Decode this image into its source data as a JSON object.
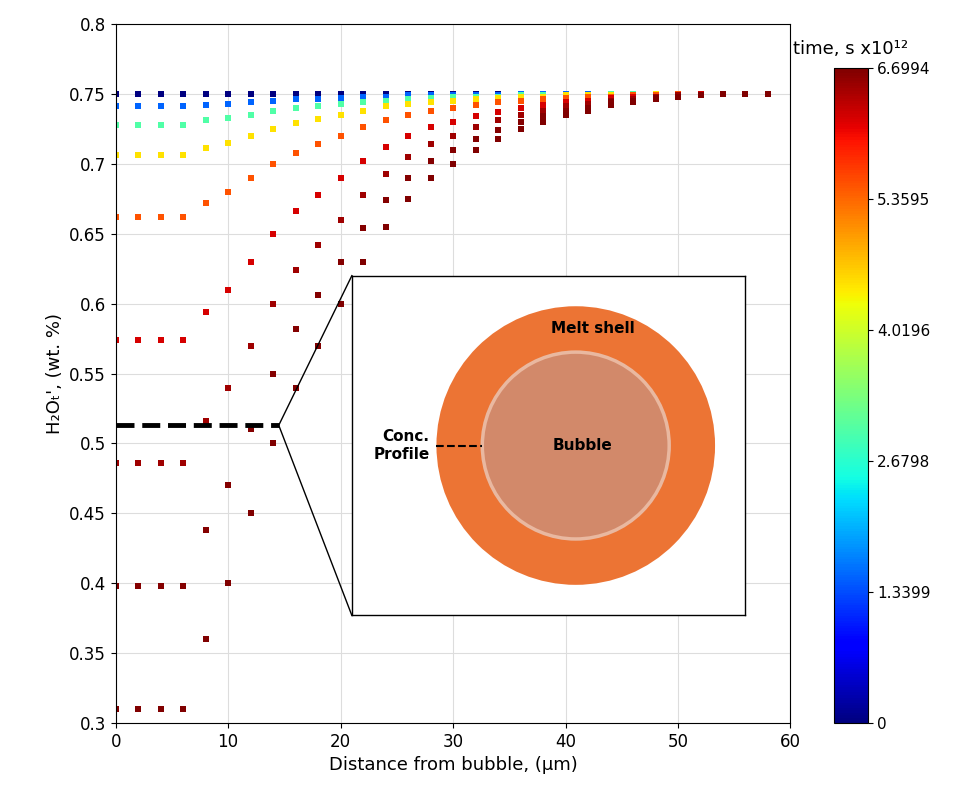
{
  "chart_data": {
    "type": "scatter",
    "x_label": "Distance from bubble, (µm)",
    "y_label": "H₂Oₜ', (wt. %)",
    "xlim": [
      0,
      60
    ],
    "xticks": [
      0,
      10,
      20,
      30,
      40,
      50,
      60
    ],
    "ylim": [
      0.3,
      0.8
    ],
    "yticks": [
      0.3,
      0.35,
      0.4,
      0.45,
      0.5,
      0.55,
      0.6,
      0.65,
      0.7,
      0.75,
      0.8
    ],
    "grid": true,
    "marker": "square",
    "x": [
      0,
      2,
      4,
      6,
      8,
      10,
      12,
      14,
      16,
      18,
      20,
      22,
      24,
      26,
      28,
      30,
      32,
      34,
      36,
      38,
      40,
      42,
      44,
      46,
      48,
      50,
      52,
      54,
      56,
      58
    ],
    "series": [
      {
        "time": 0,
        "values": [
          0.75,
          0.75,
          0.75,
          0.75,
          0.75,
          0.75,
          0.75,
          0.75,
          0.75,
          0.75,
          0.75,
          0.75,
          0.75,
          0.75,
          0.75,
          0.75,
          0.75,
          0.75,
          0.75,
          0.75,
          0.75,
          0.75,
          0.75,
          0.75,
          0.75,
          0.75,
          0.75,
          0.75,
          0.75,
          0.75
        ]
      },
      {
        "time": 1.5,
        "values": [
          0.741,
          0.741,
          0.741,
          0.741,
          0.742,
          0.743,
          0.744,
          0.745,
          0.746,
          0.746,
          0.747,
          0.748,
          0.748,
          0.749,
          0.749,
          0.749,
          0.749,
          0.749,
          0.75,
          0.75,
          0.75,
          0.75,
          0.75,
          0.75,
          0.75,
          0.75,
          0.75,
          0.75,
          0.75,
          0.75
        ]
      },
      {
        "time": 3.0,
        "values": [
          0.728,
          0.728,
          0.728,
          0.728,
          0.731,
          0.733,
          0.735,
          0.738,
          0.74,
          0.741,
          0.743,
          0.744,
          0.745,
          0.746,
          0.747,
          0.748,
          0.748,
          0.748,
          0.749,
          0.749,
          0.749,
          0.749,
          0.75,
          0.75,
          0.75,
          0.75,
          0.75,
          0.75,
          0.75,
          0.75
        ]
      },
      {
        "time": 4.5,
        "values": [
          0.706,
          0.706,
          0.706,
          0.706,
          0.711,
          0.715,
          0.72,
          0.725,
          0.729,
          0.732,
          0.735,
          0.738,
          0.741,
          0.743,
          0.744,
          0.745,
          0.746,
          0.747,
          0.748,
          0.748,
          0.749,
          0.749,
          0.749,
          0.749,
          0.75,
          0.75,
          0.75,
          0.75,
          0.75,
          0.75
        ]
      },
      {
        "time": 5.5,
        "values": [
          0.662,
          0.662,
          0.662,
          0.662,
          0.672,
          0.68,
          0.69,
          0.7,
          0.708,
          0.714,
          0.72,
          0.726,
          0.731,
          0.735,
          0.738,
          0.74,
          0.742,
          0.744,
          0.745,
          0.746,
          0.747,
          0.748,
          0.748,
          0.749,
          0.749,
          0.75,
          0.75,
          0.75,
          0.75,
          0.75
        ]
      },
      {
        "time": 6.2,
        "values": [
          0.574,
          0.574,
          0.574,
          0.574,
          0.594,
          0.61,
          0.63,
          0.65,
          0.666,
          0.678,
          0.69,
          0.702,
          0.712,
          0.72,
          0.726,
          0.73,
          0.734,
          0.737,
          0.74,
          0.742,
          0.744,
          0.745,
          0.747,
          0.748,
          0.748,
          0.749,
          0.75,
          0.75,
          0.75,
          0.75
        ]
      },
      {
        "time": 6.5,
        "values": [
          0.486,
          0.486,
          0.486,
          0.486,
          0.516,
          0.54,
          0.57,
          0.6,
          0.624,
          0.642,
          0.66,
          0.678,
          0.693,
          0.705,
          0.714,
          0.72,
          0.726,
          0.731,
          0.735,
          0.738,
          0.741,
          0.743,
          0.745,
          0.746,
          0.748,
          0.749,
          0.749,
          0.75,
          0.75,
          0.75
        ]
      },
      {
        "time": 6.65,
        "values": [
          0.398,
          0.398,
          0.398,
          0.398,
          0.438,
          0.47,
          0.51,
          0.55,
          0.582,
          0.606,
          0.63,
          0.654,
          0.674,
          0.69,
          0.702,
          0.71,
          0.718,
          0.724,
          0.73,
          0.734,
          0.738,
          0.74,
          0.744,
          0.745,
          0.747,
          0.748,
          0.749,
          0.75,
          0.75,
          0.75
        ]
      },
      {
        "time": 6.6994,
        "values": [
          0.31,
          0.31,
          0.31,
          0.31,
          0.36,
          0.4,
          0.45,
          0.5,
          0.54,
          0.57,
          0.6,
          0.63,
          0.655,
          0.675,
          0.69,
          0.7,
          0.71,
          0.718,
          0.725,
          0.73,
          0.735,
          0.738,
          0.742,
          0.744,
          0.746,
          0.748,
          0.749,
          0.75,
          0.75,
          0.75
        ]
      }
    ],
    "colorbar": {
      "label": "time, s x10¹²",
      "range": [
        0,
        6.6994
      ],
      "ticks": [
        0,
        1.3399,
        2.6798,
        4.0196,
        5.3595,
        6.6994
      ]
    },
    "profile_line": {
      "x": [
        0,
        14.5
      ],
      "y": 0.513
    },
    "inset": {
      "shell": "Melt shell",
      "bubble": "Bubble",
      "profile": "Conc.\nProfile"
    }
  }
}
